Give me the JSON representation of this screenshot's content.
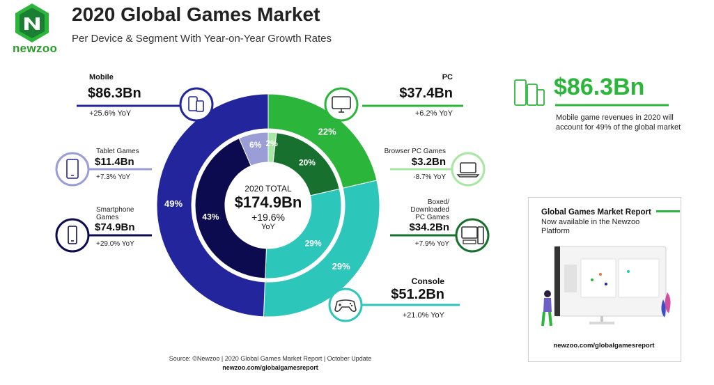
{
  "brand": {
    "name": "newzoo",
    "green": "#2cb53b",
    "dark_green": "#17803a"
  },
  "header": {
    "title": "2020 Global Games Market",
    "subtitle": "Per Device & Segment With Year-on-Year Growth Rates"
  },
  "center": {
    "label": "2020 TOTAL",
    "value": "$174.9Bn",
    "growth": "+19.6%",
    "growth_unit": "YoY"
  },
  "callouts": {
    "mobile": {
      "category": "Mobile",
      "value": "$86.3Bn",
      "yoy": "+25.6% YoY",
      "icon": "phone-tablet-icon"
    },
    "tablet": {
      "category": "Tablet Games",
      "value": "$11.4Bn",
      "yoy": "+7.3% YoY",
      "icon": "tablet-icon"
    },
    "smartphone": {
      "category_line1": "Smartphone",
      "category_line2": "Games",
      "value": "$74.9Bn",
      "yoy": "+29.0% YoY",
      "icon": "smartphone-icon"
    },
    "pc": {
      "category": "PC",
      "value": "$37.4Bn",
      "yoy": "+6.2% YoY",
      "icon": "monitor-icon"
    },
    "browser": {
      "category": "Browser PC Games",
      "value": "$3.2Bn",
      "yoy": "-8.7% YoY",
      "icon": "laptop-icon"
    },
    "boxed": {
      "category_line1": "Boxed/",
      "category_line2": "Downloaded",
      "category_line3": "PC Games",
      "value": "$34.2Bn",
      "yoy": "+7.9% YoY",
      "icon": "desktop-pc-icon"
    },
    "console": {
      "category": "Console",
      "value": "$51.2Bn",
      "yoy": "+21.0% YoY",
      "icon": "gamepad-icon"
    }
  },
  "highlight": {
    "value": "$86.3Bn",
    "text": "Mobile game revenues in 2020 will account for 49% of the global market"
  },
  "promo": {
    "title": "Global Games Market Report",
    "subtitle": "Now available in the Newzoo Platform",
    "url": "newzoo.com/globalgamesreport"
  },
  "source": {
    "line1": "Source: ©Newzoo | 2020 Global Games Market Report | October Update",
    "line2": "newzoo.com/globalgamesreport"
  },
  "chart_data": {
    "type": "pie",
    "center_total": 174.9,
    "outer_ring": {
      "series": [
        {
          "name": "Mobile",
          "share_label": "49%",
          "color": "#22259b"
        },
        {
          "name": "PC",
          "share_label": "22%",
          "color": "#2cb53b"
        },
        {
          "name": "Console",
          "share_label": "29%",
          "color": "#2dc6ba"
        }
      ],
      "categories": [
        "Mobile",
        "PC",
        "Console"
      ],
      "values": [
        86.3,
        37.4,
        51.2
      ],
      "colors": [
        "#22259b",
        "#2cb53b",
        "#2dc6ba"
      ],
      "labels": [
        "49%",
        "22%",
        "29%"
      ]
    },
    "inner_ring": {
      "categories": [
        "Tablet Games",
        "Browser PC Games",
        "Boxed/Downloaded PC Games",
        "Console",
        "Smartphone Games"
      ],
      "values": [
        11.4,
        3.2,
        34.2,
        51.2,
        74.9
      ],
      "colors": [
        "#9b9dd6",
        "#a8e6a3",
        "#17702e",
        "#2dc6ba",
        "#0c0b4f"
      ],
      "labels": [
        "6%",
        "2%",
        "20%",
        "29%",
        "43%"
      ]
    }
  }
}
